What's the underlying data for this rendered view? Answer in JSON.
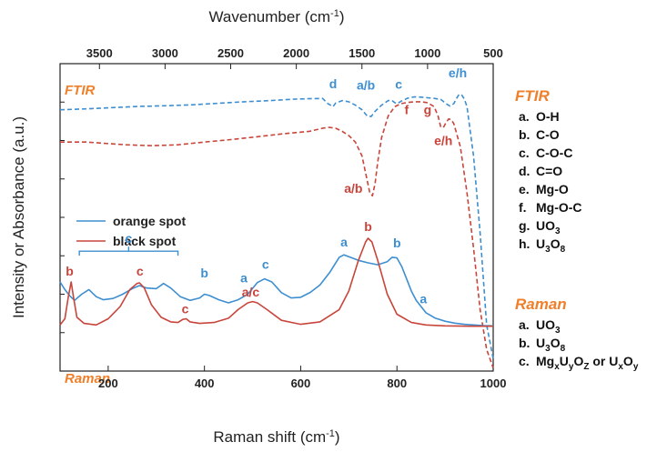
{
  "chart_data": {
    "type": "line",
    "top_axis": {
      "title": "Wavenumber (cm",
      "title_sup": "-1",
      "title_close": ")",
      "range": [
        3800,
        500
      ],
      "ticks": [
        3500,
        3000,
        2500,
        2000,
        1500,
        1000,
        500
      ]
    },
    "bottom_axis": {
      "title": "Raman shift (cm",
      "title_sup": "-1",
      "title_close": ")",
      "range": [
        100,
        1000
      ],
      "ticks": [
        200,
        400,
        600,
        800,
        1000
      ]
    },
    "ylabel": "Intensity or Absorbance (a.u.)",
    "mode_labels": {
      "ftir": "FTIR",
      "raman": "Raman"
    },
    "colors": {
      "orange_spot": "#3d8fd1",
      "black_spot": "#c8453b",
      "accent": "#f07f2a",
      "axis": "#222222"
    },
    "legend": [
      {
        "key": "orange",
        "label": "orange spot"
      },
      {
        "key": "black",
        "label": "black spot"
      }
    ],
    "series": [
      {
        "name": "orange spot",
        "mode": "FTIR",
        "x": [
          3800,
          3600,
          3400,
          3200,
          3000,
          2800,
          2600,
          2400,
          2200,
          2000,
          1800,
          1760,
          1720,
          1700,
          1650,
          1600,
          1550,
          1500,
          1460,
          1430,
          1400,
          1350,
          1300,
          1270,
          1250,
          1230,
          1200,
          1150,
          1100,
          1050,
          1000,
          950,
          900,
          860,
          830,
          800,
          780,
          760,
          740,
          720,
          700,
          650,
          600,
          550,
          500
        ],
        "y": [
          0.85,
          0.853,
          0.857,
          0.861,
          0.863,
          0.866,
          0.871,
          0.876,
          0.88,
          0.885,
          0.887,
          0.87,
          0.86,
          0.872,
          0.88,
          0.876,
          0.865,
          0.85,
          0.83,
          0.828,
          0.845,
          0.865,
          0.88,
          0.88,
          0.873,
          0.87,
          0.878,
          0.888,
          0.892,
          0.891,
          0.889,
          0.887,
          0.884,
          0.87,
          0.862,
          0.87,
          0.886,
          0.9,
          0.898,
          0.885,
          0.86,
          0.7,
          0.45,
          0.15,
          0.04
        ]
      },
      {
        "name": "black spot",
        "mode": "FTIR",
        "x": [
          3800,
          3700,
          3600,
          3500,
          3300,
          3100,
          2900,
          2700,
          2500,
          2300,
          2100,
          1900,
          1800,
          1750,
          1700,
          1650,
          1600,
          1550,
          1500,
          1470,
          1440,
          1420,
          1400,
          1380,
          1350,
          1300,
          1250,
          1200,
          1150,
          1100,
          1050,
          1000,
          950,
          920,
          900,
          880,
          860,
          840,
          820,
          800,
          750,
          700,
          650,
          600,
          550,
          500
        ],
        "y": [
          0.745,
          0.745,
          0.745,
          0.742,
          0.736,
          0.733,
          0.736,
          0.745,
          0.753,
          0.762,
          0.772,
          0.78,
          0.79,
          0.793,
          0.79,
          0.78,
          0.766,
          0.745,
          0.7,
          0.64,
          0.58,
          0.57,
          0.61,
          0.68,
          0.76,
          0.83,
          0.86,
          0.87,
          0.874,
          0.876,
          0.876,
          0.873,
          0.86,
          0.83,
          0.795,
          0.792,
          0.808,
          0.82,
          0.818,
          0.805,
          0.73,
          0.58,
          0.4,
          0.2,
          0.07,
          0.01
        ]
      },
      {
        "name": "orange spot",
        "mode": "Raman",
        "x": [
          100,
          110,
          120,
          130,
          145,
          160,
          175,
          190,
          210,
          230,
          250,
          265,
          280,
          300,
          315,
          330,
          350,
          370,
          390,
          400,
          410,
          430,
          450,
          470,
          490,
          510,
          525,
          540,
          560,
          580,
          600,
          620,
          640,
          660,
          680,
          690,
          700,
          720,
          740,
          760,
          780,
          790,
          800,
          810,
          820,
          830,
          840,
          850,
          860,
          880,
          900,
          920,
          940,
          960,
          980,
          1000
        ],
        "y": [
          0.29,
          0.265,
          0.245,
          0.23,
          0.25,
          0.265,
          0.242,
          0.232,
          0.236,
          0.25,
          0.268,
          0.278,
          0.27,
          0.268,
          0.285,
          0.27,
          0.242,
          0.23,
          0.238,
          0.25,
          0.246,
          0.232,
          0.222,
          0.232,
          0.25,
          0.288,
          0.3,
          0.29,
          0.255,
          0.238,
          0.24,
          0.256,
          0.28,
          0.32,
          0.37,
          0.378,
          0.372,
          0.36,
          0.352,
          0.346,
          0.356,
          0.37,
          0.368,
          0.34,
          0.3,
          0.26,
          0.23,
          0.21,
          0.19,
          0.172,
          0.162,
          0.156,
          0.152,
          0.15,
          0.148,
          0.147
        ]
      },
      {
        "name": "black spot",
        "mode": "Raman",
        "x": [
          100,
          110,
          117,
          123,
          128,
          135,
          150,
          175,
          200,
          225,
          245,
          260,
          265,
          275,
          290,
          310,
          330,
          345,
          355,
          362,
          370,
          390,
          420,
          450,
          470,
          490,
          500,
          510,
          530,
          560,
          600,
          640,
          680,
          700,
          720,
          735,
          740,
          748,
          760,
          780,
          800,
          830,
          860,
          900,
          950,
          1000
        ],
        "y": [
          0.15,
          0.17,
          0.24,
          0.29,
          0.24,
          0.175,
          0.155,
          0.15,
          0.17,
          0.21,
          0.265,
          0.285,
          0.287,
          0.27,
          0.215,
          0.175,
          0.16,
          0.158,
          0.168,
          0.17,
          0.16,
          0.155,
          0.158,
          0.172,
          0.2,
          0.222,
          0.226,
          0.222,
          0.2,
          0.165,
          0.152,
          0.16,
          0.2,
          0.26,
          0.36,
          0.42,
          0.432,
          0.42,
          0.36,
          0.25,
          0.185,
          0.158,
          0.15,
          0.147,
          0.146,
          0.146
        ]
      }
    ],
    "annotations": [
      {
        "text": "d",
        "series": "orange",
        "axis": "top",
        "x": 1720,
        "y": 0.92
      },
      {
        "text": "a/b",
        "series": "orange",
        "axis": "top",
        "x": 1470,
        "y": 0.915
      },
      {
        "text": "c",
        "series": "orange",
        "axis": "top",
        "x": 1220,
        "y": 0.918
      },
      {
        "text": "e/h",
        "series": "orange",
        "axis": "top",
        "x": 770,
        "y": 0.955
      },
      {
        "text": "f",
        "series": "black",
        "axis": "top",
        "x": 1160,
        "y": 0.836
      },
      {
        "text": "g",
        "series": "black",
        "axis": "top",
        "x": 1000,
        "y": 0.836
      },
      {
        "text": "e/h",
        "series": "black",
        "axis": "top",
        "x": 880,
        "y": 0.735
      },
      {
        "text": "a/b",
        "series": "black",
        "axis": "top",
        "x": 1565,
        "y": 0.58
      },
      {
        "text": "b",
        "series": "black",
        "axis": "bottom",
        "x": 120,
        "y": 0.31
      },
      {
        "text": "c",
        "series": "black",
        "axis": "bottom",
        "x": 266,
        "y": 0.31
      },
      {
        "text": "c",
        "series": "black",
        "axis": "bottom",
        "x": 360,
        "y": 0.188
      },
      {
        "text": "a/c",
        "series": "black",
        "axis": "bottom",
        "x": 496,
        "y": 0.243
      },
      {
        "text": "b",
        "series": "black",
        "axis": "bottom",
        "x": 740,
        "y": 0.455
      },
      {
        "text": "b",
        "series": "orange",
        "axis": "bottom",
        "x": 400,
        "y": 0.305
      },
      {
        "text": "a",
        "series": "orange",
        "axis": "bottom",
        "x": 482,
        "y": 0.288
      },
      {
        "text": "c",
        "series": "orange",
        "axis": "bottom",
        "x": 527,
        "y": 0.333
      },
      {
        "text": "a",
        "series": "orange",
        "axis": "bottom",
        "x": 690,
        "y": 0.405
      },
      {
        "text": "b",
        "series": "orange",
        "axis": "bottom",
        "x": 800,
        "y": 0.402
      },
      {
        "text": "a",
        "series": "orange",
        "axis": "bottom",
        "x": 855,
        "y": 0.22
      }
    ],
    "bracket": {
      "text": "c",
      "x_start": 140,
      "x_end": 345,
      "y": 0.39
    },
    "side_legend": {
      "ftir_title": "FTIR",
      "ftir_items": [
        {
          "letter": "a.",
          "parts": [
            {
              "t": "O-H"
            }
          ]
        },
        {
          "letter": "b.",
          "parts": [
            {
              "t": "C-O"
            }
          ]
        },
        {
          "letter": "c.",
          "parts": [
            {
              "t": "C-O-C"
            }
          ]
        },
        {
          "letter": "d.",
          "parts": [
            {
              "t": "C=O"
            }
          ]
        },
        {
          "letter": "e.",
          "parts": [
            {
              "t": "Mg-O"
            }
          ]
        },
        {
          "letter": "f.",
          "parts": [
            {
              "t": "Mg-O-C"
            }
          ]
        },
        {
          "letter": "g.",
          "parts": [
            {
              "t": "UO"
            },
            {
              "t": "3",
              "sub": true
            }
          ]
        },
        {
          "letter": "h.",
          "parts": [
            {
              "t": "U"
            },
            {
              "t": "3",
              "sub": true
            },
            {
              "t": "O"
            },
            {
              "t": "8",
              "sub": true
            }
          ]
        }
      ],
      "raman_title": "Raman",
      "raman_items": [
        {
          "letter": "a.",
          "parts": [
            {
              "t": "UO"
            },
            {
              "t": "3",
              "sub": true
            }
          ]
        },
        {
          "letter": "b.",
          "parts": [
            {
              "t": "U"
            },
            {
              "t": "3",
              "sub": true
            },
            {
              "t": "O"
            },
            {
              "t": "8",
              "sub": true
            }
          ]
        },
        {
          "letter": "c.",
          "parts": [
            {
              "t": "Mg"
            },
            {
              "t": "x",
              "sub": true
            },
            {
              "t": "U"
            },
            {
              "t": "y",
              "sub": true
            },
            {
              "t": "O"
            },
            {
              "t": "Z",
              "sub": true
            },
            {
              "t": " or U"
            },
            {
              "t": "x",
              "sub": true
            },
            {
              "t": "O"
            },
            {
              "t": "y",
              "sub": true
            }
          ]
        }
      ]
    }
  }
}
